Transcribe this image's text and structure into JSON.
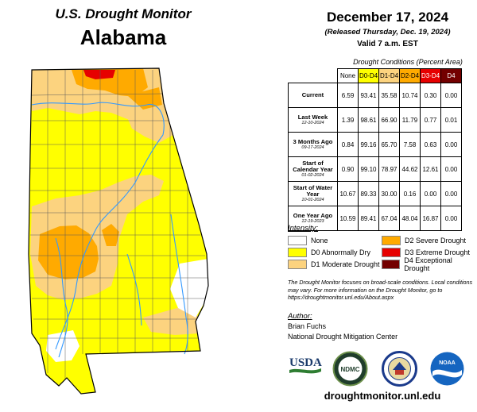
{
  "header": {
    "title": "U.S. Drought Monitor",
    "state": "Alabama"
  },
  "report": {
    "date": "December 17, 2024",
    "released": "(Released Thursday, Dec. 19, 2024)",
    "valid": "Valid 7 a.m. EST"
  },
  "table": {
    "caption": "Drought Conditions (Percent Area)",
    "columns": [
      "None",
      "D0-D4",
      "D1-D4",
      "D2-D4",
      "D3-D4",
      "D4"
    ],
    "column_colors": [
      "#ffffff",
      "#ffff00",
      "#fcd37f",
      "#ffaa00",
      "#e60000",
      "#730000"
    ],
    "rows": [
      {
        "label": "Current",
        "sublabel": "",
        "values": [
          "6.59",
          "93.41",
          "35.58",
          "10.74",
          "0.30",
          "0.00"
        ]
      },
      {
        "label": "Last Week",
        "sublabel": "12-10-2024",
        "values": [
          "1.39",
          "98.61",
          "66.90",
          "11.79",
          "0.77",
          "0.01"
        ]
      },
      {
        "label": "3 Months Ago",
        "sublabel": "09-17-2024",
        "values": [
          "0.84",
          "99.16",
          "65.70",
          "7.58",
          "0.63",
          "0.00"
        ]
      },
      {
        "label": "Start of Calendar Year",
        "sublabel": "01-02-2024",
        "values": [
          "0.90",
          "99.10",
          "78.97",
          "44.62",
          "12.61",
          "0.00"
        ]
      },
      {
        "label": "Start of Water Year",
        "sublabel": "10-01-2024",
        "values": [
          "10.67",
          "89.33",
          "30.00",
          "0.16",
          "0.00",
          "0.00"
        ]
      },
      {
        "label": "One Year Ago",
        "sublabel": "12-19-2023",
        "values": [
          "10.59",
          "89.41",
          "67.04",
          "48.04",
          "16.87",
          "0.00"
        ]
      }
    ]
  },
  "legend": {
    "title": "Intensity:",
    "items": [
      {
        "label": "None",
        "color": "#ffffff"
      },
      {
        "label": "D0 Abnormally Dry",
        "color": "#ffff00"
      },
      {
        "label": "D1 Moderate Drought",
        "color": "#fcd37f"
      },
      {
        "label": "D2 Severe Drought",
        "color": "#ffaa00"
      },
      {
        "label": "D3 Extreme Drought",
        "color": "#e60000"
      },
      {
        "label": "D4 Exceptional Drought",
        "color": "#730000"
      }
    ]
  },
  "note": "The Drought Monitor focuses on broad-scale conditions. Local conditions may vary. For more information on the Drought Monitor, go to https://droughtmonitor.unl.edu/About.aspx",
  "author": {
    "title": "Author:",
    "name": "Brian Fuchs",
    "org": "National Drought Mitigation Center"
  },
  "logos": [
    {
      "name": "usda-logo",
      "text": "USDA"
    },
    {
      "name": "ndmc-logo",
      "text": "NDMC"
    },
    {
      "name": "doc-seal",
      "text": ""
    },
    {
      "name": "noaa-logo",
      "text": "NOAA"
    }
  ],
  "url": "droughtmonitor.unl.edu"
}
